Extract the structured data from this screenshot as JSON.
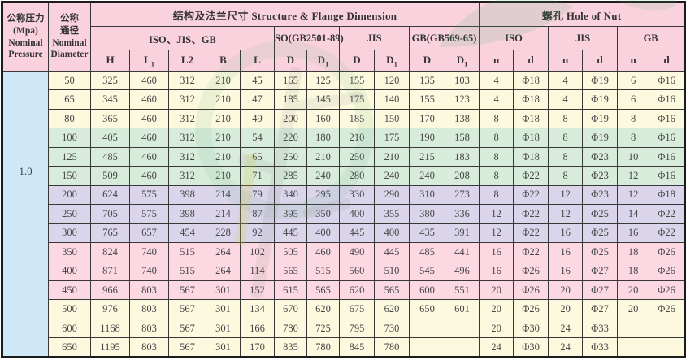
{
  "colors": {
    "header_bg": "#f9d2de",
    "band_cream": "#fcf9df",
    "band_green": "#d8ecdc",
    "band_purple": "#dad5ea",
    "band_pink": "#fbd8e2",
    "pressure_col_bg": "#cfe8f8",
    "border": "#383838",
    "watermark_green": "#4aa96e"
  },
  "header": {
    "pressure_label": "公称压力\n(Mpa)\nNominal\nPressure",
    "diameter_label": "公称\n通径\nNominal\nDiameter",
    "flange_section_label": "结构及法兰尺寸 Structure & Flange Dimension",
    "nut_section_label": "螺孔 Hole of Nut",
    "groups": [
      {
        "label": "ISO、JIS、GB",
        "span": 5
      },
      {
        "label": "SO(GB2501-89)",
        "span": 2
      },
      {
        "label": "JIS",
        "span": 2
      },
      {
        "label": "GB(GB569-65)",
        "span": 2
      },
      {
        "label": "ISO",
        "span": 2
      },
      {
        "label": "JIS",
        "span": 2
      },
      {
        "label": "GB",
        "span": 2
      }
    ],
    "columns": [
      {
        "base": "H",
        "sub": ""
      },
      {
        "base": "L",
        "sub": "1"
      },
      {
        "base": "L2",
        "sub": ""
      },
      {
        "base": "B",
        "sub": ""
      },
      {
        "base": "L",
        "sub": ""
      },
      {
        "base": "D",
        "sub": ""
      },
      {
        "base": "D",
        "sub": "1"
      },
      {
        "base": "D",
        "sub": ""
      },
      {
        "base": "D",
        "sub": "1"
      },
      {
        "base": "D",
        "sub": ""
      },
      {
        "base": "D",
        "sub": "1"
      },
      {
        "base": "n",
        "sub": ""
      },
      {
        "base": "d",
        "sub": ""
      },
      {
        "base": "n",
        "sub": ""
      },
      {
        "base": "d",
        "sub": ""
      },
      {
        "base": "n",
        "sub": ""
      },
      {
        "base": "d",
        "sub": ""
      }
    ]
  },
  "pressure_value": "1.0",
  "rows": [
    {
      "dn": "50",
      "band": "cream",
      "values": [
        "325",
        "460",
        "312",
        "210",
        "45",
        "165",
        "125",
        "155",
        "120",
        "135",
        "103",
        "4",
        "Φ18",
        "4",
        "Φ19",
        "6",
        "Φ16"
      ]
    },
    {
      "dn": "65",
      "band": "cream",
      "values": [
        "345",
        "460",
        "312",
        "210",
        "47",
        "185",
        "145",
        "175",
        "140",
        "155",
        "123",
        "4",
        "Φ18",
        "4",
        "Φ19",
        "6",
        "Φ16"
      ]
    },
    {
      "dn": "80",
      "band": "cream",
      "values": [
        "365",
        "460",
        "312",
        "210",
        "49",
        "200",
        "160",
        "185",
        "150",
        "170",
        "138",
        "8",
        "Φ18",
        "8",
        "Φ19",
        "8",
        "Φ16"
      ]
    },
    {
      "dn": "100",
      "band": "green",
      "values": [
        "405",
        "460",
        "312",
        "210",
        "54",
        "220",
        "180",
        "210",
        "175",
        "190",
        "158",
        "8",
        "Φ18",
        "8",
        "Φ19",
        "8",
        "Φ16"
      ]
    },
    {
      "dn": "125",
      "band": "green",
      "values": [
        "485",
        "460",
        "312",
        "210",
        "65",
        "250",
        "210",
        "250",
        "210",
        "215",
        "183",
        "8",
        "Φ18",
        "8",
        "Φ23",
        "10",
        "Φ16"
      ]
    },
    {
      "dn": "150",
      "band": "green",
      "values": [
        "509",
        "460",
        "312",
        "210",
        "71",
        "285",
        "240",
        "280",
        "240",
        "240",
        "208",
        "8",
        "Φ22",
        "8",
        "Φ23",
        "12",
        "Φ16"
      ]
    },
    {
      "dn": "200",
      "band": "purple",
      "values": [
        "624",
        "575",
        "398",
        "214",
        "79",
        "340",
        "295",
        "330",
        "290",
        "310",
        "273",
        "8",
        "Φ22",
        "12",
        "Φ23",
        "12",
        "Φ18"
      ]
    },
    {
      "dn": "250",
      "band": "purple",
      "values": [
        "705",
        "575",
        "398",
        "214",
        "87",
        "395",
        "350",
        "400",
        "355",
        "380",
        "336",
        "12",
        "Φ22",
        "12",
        "Φ25",
        "14",
        "Φ22"
      ]
    },
    {
      "dn": "300",
      "band": "purple",
      "values": [
        "765",
        "657",
        "454",
        "228",
        "92",
        "445",
        "400",
        "445",
        "400",
        "435",
        "391",
        "12",
        "Φ22",
        "16",
        "Φ25",
        "16",
        "Φ22"
      ]
    },
    {
      "dn": "350",
      "band": "pink",
      "values": [
        "824",
        "740",
        "515",
        "264",
        "102",
        "505",
        "460",
        "490",
        "445",
        "485",
        "441",
        "16",
        "Φ22",
        "16",
        "Φ25",
        "18",
        "Φ26"
      ]
    },
    {
      "dn": "400",
      "band": "pink",
      "values": [
        "871",
        "740",
        "515",
        "264",
        "114",
        "565",
        "515",
        "560",
        "510",
        "545",
        "496",
        "16",
        "Φ26",
        "16",
        "Φ27",
        "18",
        "Φ26"
      ]
    },
    {
      "dn": "450",
      "band": "pink",
      "values": [
        "966",
        "803",
        "567",
        "301",
        "152",
        "615",
        "565",
        "620",
        "565",
        "600",
        "551",
        "20",
        "Φ26",
        "20",
        "Φ27",
        "20",
        "Φ26"
      ]
    },
    {
      "dn": "500",
      "band": "cream",
      "values": [
        "976",
        "803",
        "567",
        "301",
        "134",
        "670",
        "620",
        "675",
        "620",
        "650",
        "601",
        "20",
        "Φ26",
        "20",
        "Φ27",
        "20",
        "Φ26"
      ]
    },
    {
      "dn": "600",
      "band": "cream",
      "values": [
        "1168",
        "803",
        "567",
        "301",
        "166",
        "780",
        "725",
        "795",
        "730",
        "",
        "",
        "20",
        "Φ30",
        "24",
        "Φ33",
        "",
        ""
      ]
    },
    {
      "dn": "650",
      "band": "cream",
      "values": [
        "1195",
        "803",
        "567",
        "301",
        "170",
        "835",
        "780",
        "845",
        "780",
        "",
        "",
        "24",
        "Φ30",
        "24",
        "Φ33",
        "",
        ""
      ]
    }
  ]
}
